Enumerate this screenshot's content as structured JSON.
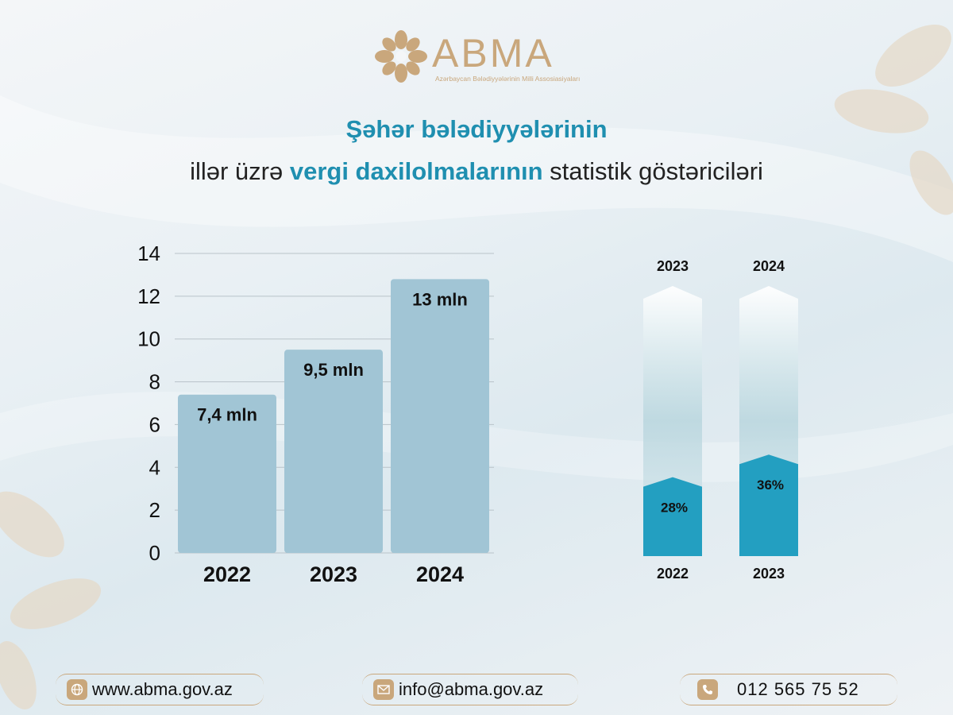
{
  "brand": {
    "name": "ABMA",
    "subtitle": "Azərbaycan Bələdiyyələrinin Milli Assosiasiyaları"
  },
  "title": {
    "line1": "Şəhər bələdiyyələrinin",
    "line2_pre": "illər üzrə ",
    "line2_highlight": "vergi daxilolmalarının",
    "line2_post": " statistik göstəriciləri"
  },
  "chart_data": [
    {
      "type": "bar",
      "categories": [
        "2022",
        "2023",
        "2024"
      ],
      "values": [
        7.4,
        9.5,
        12.8
      ],
      "data_labels": [
        "7,4 mln",
        "9,5 mln",
        "13 mln"
      ],
      "yticks": [
        "0",
        "2",
        "4",
        "6",
        "8",
        "10",
        "12",
        "14"
      ],
      "ylim": [
        0,
        14
      ],
      "grid": true,
      "bar_color": "#a1c5d5"
    },
    {
      "type": "bar",
      "subtype": "percentage-growth",
      "pairs": [
        {
          "from": "2022",
          "to": "2023",
          "value": 28,
          "label": "28%"
        },
        {
          "from": "2023",
          "to": "2024",
          "value": 36,
          "label": "36%"
        }
      ],
      "fill_color": "#239fc1"
    }
  ],
  "contacts": {
    "website": "www.abma.gov.az",
    "email": "info@abma.gov.az",
    "phone": "012 565 75 52"
  },
  "colors": {
    "accent": "#1f8fb0",
    "gold": "#c9a77c"
  },
  "icons": {
    "website": "globe-icon",
    "email": "envelope-icon",
    "phone": "phone-icon"
  }
}
